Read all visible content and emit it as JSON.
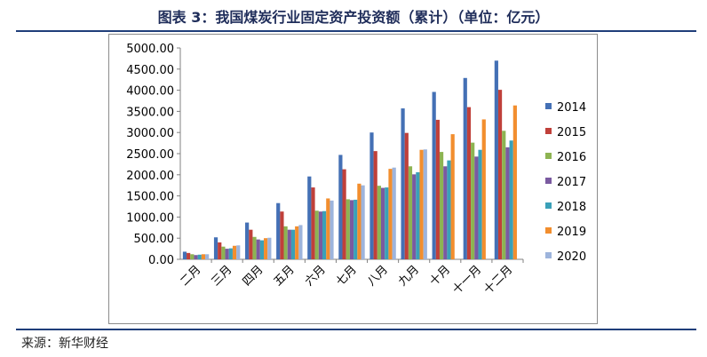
{
  "title": "图表 3：我国煤炭行业固定资产投资额（累计）（单位：亿元）",
  "source": "来源：新华财经",
  "chart_data": {
    "type": "bar",
    "categories": [
      "二月",
      "三月",
      "四月",
      "五月",
      "六月",
      "七月",
      "八月",
      "九月",
      "十月",
      "十一月",
      "十二月"
    ],
    "ylim": [
      0,
      5000
    ],
    "yticks": [
      "0.00",
      "500.00",
      "1000.00",
      "1500.00",
      "2000.00",
      "2500.00",
      "3000.00",
      "3500.00",
      "4000.00",
      "4500.00",
      "5000.00"
    ],
    "legend_position": "right",
    "series": [
      {
        "name": "2014",
        "color": "#4470b5",
        "values": [
          180,
          520,
          870,
          1330,
          1960,
          2470,
          3000,
          3570,
          3960,
          4290,
          4700
        ]
      },
      {
        "name": "2015",
        "color": "#c0403a",
        "values": [
          150,
          400,
          700,
          1130,
          1700,
          2130,
          2560,
          2990,
          3300,
          3600,
          4010
        ]
      },
      {
        "name": "2016",
        "color": "#8db352",
        "values": [
          120,
          300,
          530,
          780,
          1150,
          1420,
          1740,
          2200,
          2540,
          2760,
          3040
        ]
      },
      {
        "name": "2017",
        "color": "#7a5aa0",
        "values": [
          100,
          250,
          470,
          700,
          1130,
          1400,
          1690,
          2010,
          2200,
          2430,
          2650
        ]
      },
      {
        "name": "2018",
        "color": "#3aa0b8",
        "values": [
          110,
          260,
          450,
          700,
          1140,
          1410,
          1700,
          2060,
          2340,
          2590,
          2810
        ]
      },
      {
        "name": "2019",
        "color": "#f28e2e",
        "values": [
          120,
          320,
          500,
          780,
          1440,
          1790,
          2140,
          2590,
          2960,
          3310,
          3640
        ]
      },
      {
        "name": "2020",
        "color": "#9db4dc",
        "values": [
          120,
          330,
          510,
          810,
          1390,
          1750,
          2170,
          2600,
          null,
          null,
          null
        ]
      }
    ]
  }
}
